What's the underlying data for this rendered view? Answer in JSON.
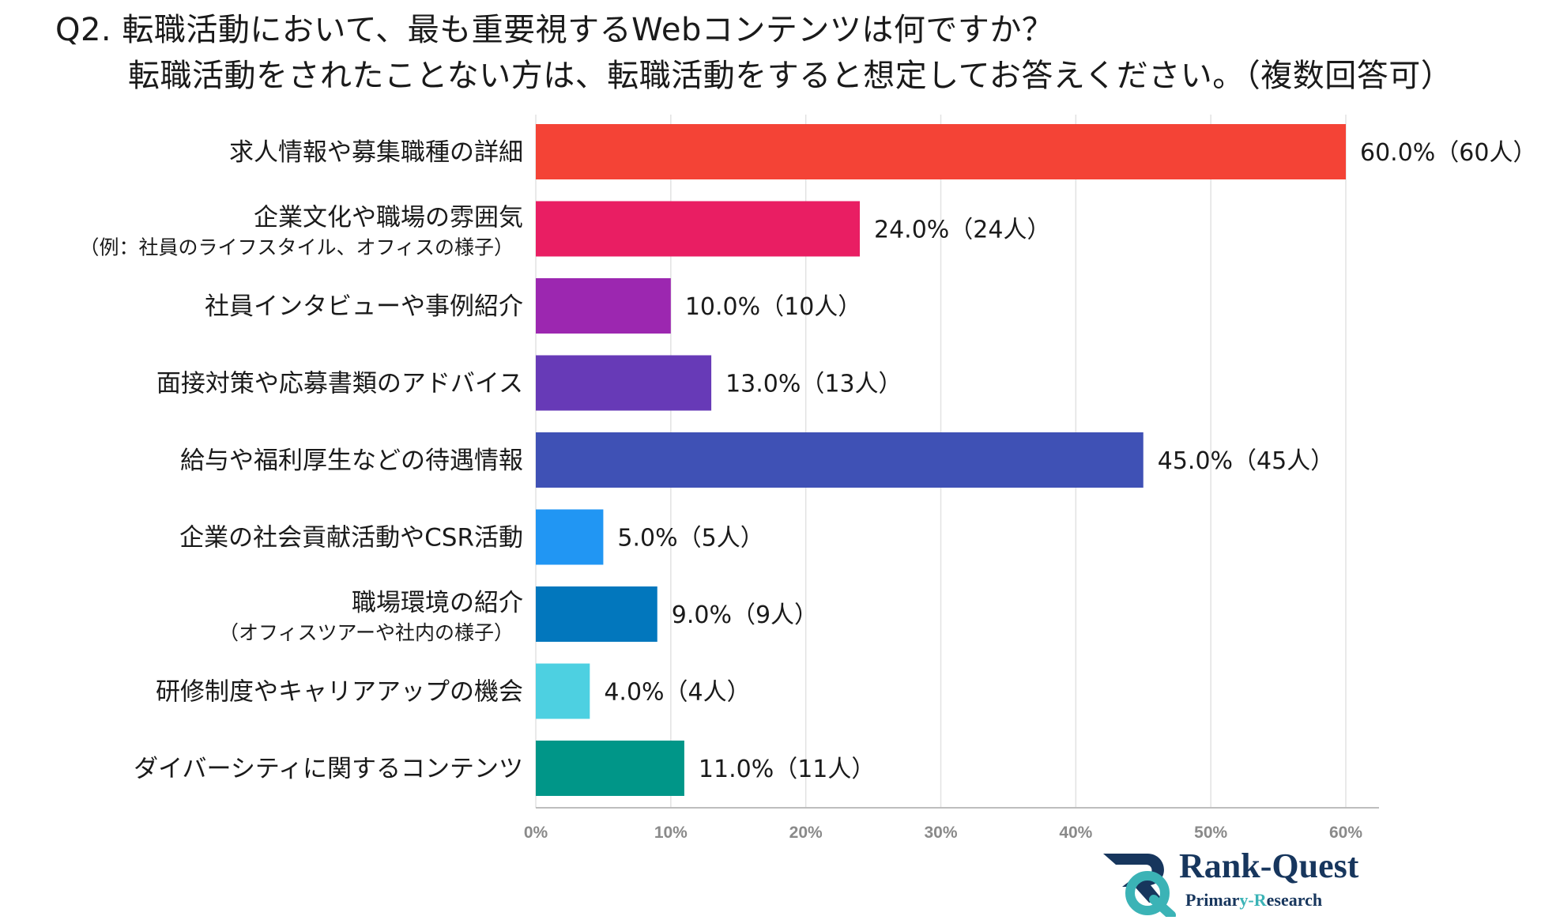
{
  "title": "Q2. 転職活動において、最も重要視するWebコンテンツは何ですか？",
  "subtitle": "転職活動をされたことない方は、転職活動をすると想定してお答えください。（複数回答可）",
  "brand": {
    "name": "Rank-Quest",
    "sub_part1": "Primar",
    "sub_part2": "y-R",
    "sub_part3": "esearch",
    "accent_color": "#3bb3b6",
    "primary_color": "#17365d"
  },
  "chart_data": {
    "type": "bar",
    "orientation": "horizontal",
    "categories": [
      {
        "label": "求人情報や募集職種の詳細",
        "sub": ""
      },
      {
        "label": "企業文化や職場の雰囲気",
        "sub": "（例：社員のライフスタイル、オフィスの様子）"
      },
      {
        "label": "社員インタビューや事例紹介",
        "sub": ""
      },
      {
        "label": "面接対策や応募書類のアドバイス",
        "sub": ""
      },
      {
        "label": "給与や福利厚生などの待遇情報",
        "sub": ""
      },
      {
        "label": "企業の社会貢献活動やCSR活動",
        "sub": ""
      },
      {
        "label": "職場環境の紹介",
        "sub": "（オフィスツアーや社内の様子）"
      },
      {
        "label": "研修制度やキャリアアップの機会",
        "sub": ""
      },
      {
        "label": "ダイバーシティに関するコンテンツ",
        "sub": ""
      }
    ],
    "values": [
      60.0,
      24.0,
      10.0,
      13.0,
      45.0,
      5.0,
      9.0,
      4.0,
      11.0
    ],
    "value_labels": [
      "60.0%（60人）",
      "24.0%（24人）",
      "10.0%（10人）",
      "13.0%（13人）",
      "45.0%（45人）",
      "5.0%（5人）",
      "9.0%（9人）",
      "4.0%（4人）",
      "11.0%（11人）"
    ],
    "colors": [
      "#f44336",
      "#e91e63",
      "#9c27b0",
      "#673ab7",
      "#3f51b5",
      "#2196f3",
      "#0277bd",
      "#4dd0e1",
      "#009688"
    ],
    "x_ticks": [
      "0%",
      "10%",
      "20%",
      "30%",
      "40%",
      "50%",
      "60%"
    ],
    "xlim": [
      0,
      60
    ],
    "grid": true,
    "legend": "none"
  }
}
